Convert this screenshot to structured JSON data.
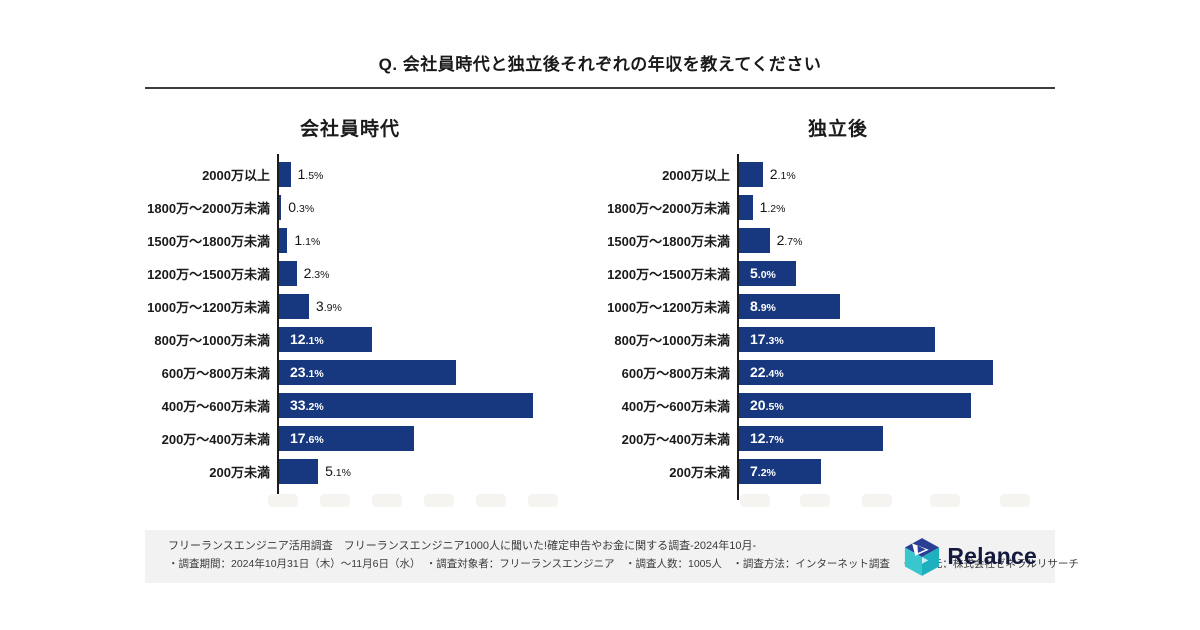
{
  "page_title": "Q. 会社員時代と独立後それぞれの年収を教えてください",
  "chart_data": [
    {
      "type": "bar",
      "orientation": "horizontal",
      "title": "会社員時代",
      "categories": [
        "2000万以上",
        "1800万〜2000万未満",
        "1500万〜1800万未満",
        "1200万〜1500万未満",
        "1000万〜1200万未満",
        "800万〜1000万未満",
        "600万〜800万未満",
        "400万〜600万未満",
        "200万〜400万未満",
        "200万未満"
      ],
      "values": [
        1.5,
        0.3,
        1.1,
        2.3,
        3.9,
        12.1,
        23.1,
        33.2,
        17.6,
        5.1
      ],
      "value_labels": [
        "1.5%",
        "0.3%",
        "1.1%",
        "2.3%",
        "3.9%",
        "12.1%",
        "23.1%",
        "33.2%",
        "17.6%",
        "5.1%"
      ],
      "unit": "%",
      "xlim": [
        0,
        35
      ],
      "grid": false,
      "legend": "none"
    },
    {
      "type": "bar",
      "orientation": "horizontal",
      "title": "独立後",
      "categories": [
        "2000万以上",
        "1800万〜2000万未満",
        "1500万〜1800万未満",
        "1200万〜1500万未満",
        "1000万〜1200万未満",
        "800万〜1000万未満",
        "600万〜800万未満",
        "400万〜600万未満",
        "200万〜400万未満",
        "200万未満"
      ],
      "values": [
        2.1,
        1.2,
        2.7,
        5.0,
        8.9,
        17.3,
        22.4,
        20.5,
        12.7,
        7.2
      ],
      "value_labels": [
        "2.1%",
        "1.2%",
        "2.7%",
        "5.0%",
        "8.9%",
        "17.3%",
        "22.4%",
        "20.5%",
        "12.7%",
        "7.2%"
      ],
      "unit": "%",
      "xlim": [
        0,
        25
      ],
      "grid": false,
      "legend": "none"
    }
  ],
  "footer": {
    "line1": "フリーランスエンジニア活用調査　フリーランスエンジニア1000人に聞いた!確定申告やお金に関する調査-2024年10月-",
    "items": [
      "・調査期間：2024年10月31日（木）〜11月6日（水）",
      "・調査対象者：フリーランスエンジニア",
      "・調査人数：1005人",
      "・調査方法：インターネット調査",
      "・調査元：株式会社ゼネラルリサーチ"
    ],
    "logo_text": "Relance"
  },
  "colors": {
    "bar": "#17387E",
    "title_text": "#1A1A1A",
    "footer_bg": "#F2F2F2",
    "divider": "#3D3D3D",
    "logo_navy": "#2A3E96",
    "logo_teal": "#38C7CD",
    "logo_teal_dark": "#1FB0C0"
  }
}
